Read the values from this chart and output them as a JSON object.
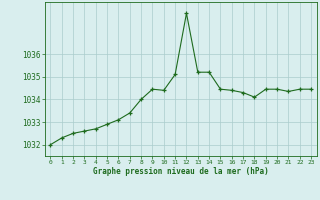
{
  "x": [
    0,
    1,
    2,
    3,
    4,
    5,
    6,
    7,
    8,
    9,
    10,
    11,
    12,
    13,
    14,
    15,
    16,
    17,
    18,
    19,
    20,
    21,
    22,
    23
  ],
  "y": [
    1032.0,
    1032.3,
    1032.5,
    1032.6,
    1032.7,
    1032.9,
    1033.1,
    1033.4,
    1034.0,
    1034.45,
    1034.4,
    1035.1,
    1037.8,
    1035.2,
    1035.2,
    1034.45,
    1034.4,
    1034.3,
    1034.1,
    1034.45,
    1034.45,
    1034.35,
    1034.45,
    1034.45
  ],
  "line_color": "#1e6b1e",
  "marker_color": "#1e6b1e",
  "bg_color": "#d9eeee",
  "plot_bg_color": "#d9eeee",
  "grid_color": "#aacccc",
  "xlabel": "Graphe pression niveau de la mer (hPa)",
  "xlabel_color": "#1e6b1e",
  "tick_color": "#1e6b1e",
  "ylabel_ticks": [
    1032,
    1033,
    1034,
    1035,
    1036
  ],
  "ylim": [
    1031.5,
    1038.3
  ],
  "xlim": [
    -0.5,
    23.5
  ],
  "figsize": [
    3.2,
    2.0
  ],
  "dpi": 100
}
